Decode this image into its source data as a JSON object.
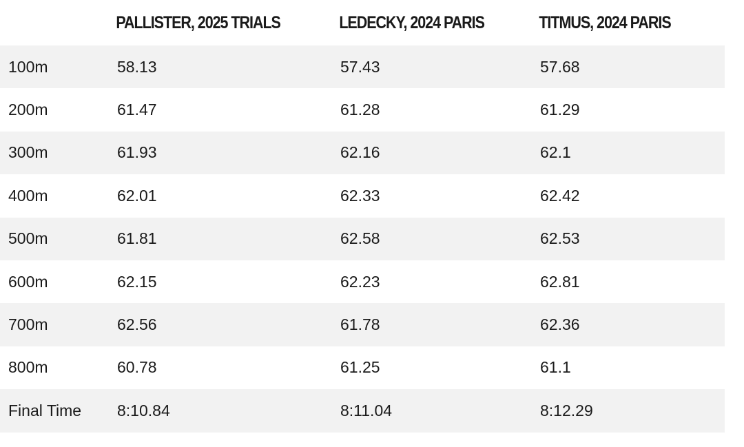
{
  "table": {
    "headers": [
      "",
      "PALLISTER, 2025 TRIALS",
      "LEDECKY, 2024 PARIS",
      "TITMUS, 2024 PARIS"
    ],
    "rows": [
      [
        "100m",
        "58.13",
        "57.43",
        "57.68"
      ],
      [
        "200m",
        "61.47",
        "61.28",
        "61.29"
      ],
      [
        "300m",
        "61.93",
        "62.16",
        "62.1"
      ],
      [
        "400m",
        "62.01",
        "62.33",
        "62.42"
      ],
      [
        "500m",
        "61.81",
        "62.58",
        "62.53"
      ],
      [
        "600m",
        "62.15",
        "62.23",
        "62.81"
      ],
      [
        "700m",
        "62.56",
        "61.78",
        "62.36"
      ],
      [
        "800m",
        "60.78",
        "61.25",
        "61.1"
      ],
      [
        "Final Time",
        "8:10.84",
        "8:11.04",
        "8:12.29"
      ]
    ]
  },
  "colors": {
    "stripe": "#f2f2f2",
    "background": "#ffffff",
    "text": "#1a1a1a"
  }
}
